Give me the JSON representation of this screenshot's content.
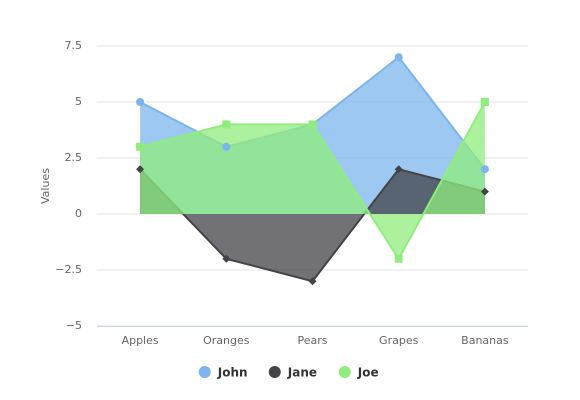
{
  "chart_data": {
    "type": "area",
    "categories": [
      "Apples",
      "Oranges",
      "Pears",
      "Grapes",
      "Bananas"
    ],
    "series": [
      {
        "name": "John",
        "color": "#7cb5ec",
        "marker": "circle",
        "values": [
          5,
          3,
          4,
          7,
          2
        ]
      },
      {
        "name": "Jane",
        "color": "#434348",
        "marker": "diamond",
        "values": [
          2,
          -2,
          -3,
          2,
          1
        ]
      },
      {
        "name": "Joe",
        "color": "#90ed7d",
        "marker": "square",
        "values": [
          3,
          4,
          4,
          -2,
          5
        ]
      }
    ],
    "y_label": "Values",
    "ylim": [
      -5,
      7.5
    ],
    "yticks": [
      {
        "value": -5,
        "label": "−5"
      },
      {
        "value": -2.5,
        "label": "−2.5"
      },
      0,
      2.5,
      5,
      7.5
    ],
    "grid": true,
    "legend": "bottom"
  }
}
